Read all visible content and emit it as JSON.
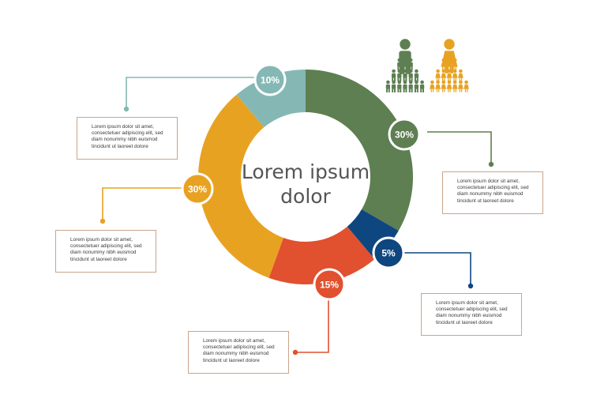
{
  "center_title": [
    "Lorem ipsum",
    "dolor"
  ],
  "colors": {
    "green": "#5e7f52",
    "navy": "#0e4680",
    "red": "#e1502f",
    "orange": "#e8a222",
    "teal": "#85b8b4",
    "connector_border": "#c9a58b"
  },
  "chart_data": {
    "type": "pie",
    "donut": true,
    "start": "top",
    "direction": "clockwise",
    "slices": [
      {
        "label": "30%",
        "value": 30,
        "color": "#5e7f52"
      },
      {
        "label": "5%",
        "value": 5,
        "color": "#0e4680"
      },
      {
        "label": "15%",
        "value": 15,
        "color": "#e1502f"
      },
      {
        "label": "30%",
        "value": 30,
        "color": "#e8a222"
      },
      {
        "label": "10%",
        "value": 10,
        "color": "#85b8b4"
      }
    ]
  },
  "text_boxes": [
    {
      "text": "Lorem ipsum dolor sit amet,\nconsectetuer adipiscing elit, sed\ndiam nonummy nibh euismod\ntincidunt ut laoreet dolore"
    },
    {
      "text": "Lorem ipsum dolor sit amet,\nconsectetuer adipiscing elit, sed\ndiam nonummy nibh euismod\ntincidunt ut laoreet dolore"
    },
    {
      "text": "Lorem ipsum dolor sit amet,\nconsectetuer adipiscing elit, sed\ndiam nonummy nibh euismod\ntincidunt ut laoreet dolore"
    },
    {
      "text": "Lorem ipsum dolor sit amet,\nconsectetuer adipiscing elit, sed\ndiam nonummy nibh euismod\ntincidunt ut laoreet dolore"
    },
    {
      "text": "Lorem ipsum dolor sit amet,\nconsectetuer adipiscing elit, sed\ndiam nonummy nibh euismod\ntincidunt ut laoreet dolore"
    }
  ],
  "people_icons": [
    {
      "name": "male-group",
      "color": "#5e7f52"
    },
    {
      "name": "female-group",
      "color": "#e8a222"
    }
  ]
}
